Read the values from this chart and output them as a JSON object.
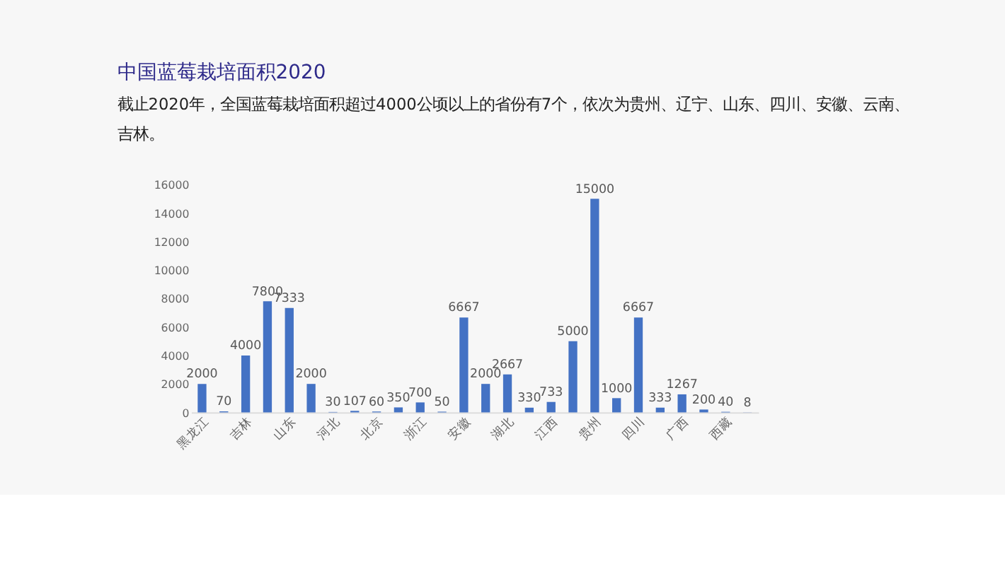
{
  "chart_data": {
    "type": "bar",
    "title": "中国蓝莓栽培面积2020",
    "subtitle": "截止2020年，全国蓝莓栽培面积超过4000公顷以上的省份有7个，依次为贵州、辽宁、山东、四川、安徽、云南、吉林。",
    "categories": [
      "黑龙江",
      null,
      "吉林",
      null,
      "山东",
      null,
      "河北",
      null,
      "北京",
      null,
      "浙江",
      null,
      "安徽",
      null,
      "湖北",
      null,
      "江西",
      null,
      "贵州",
      null,
      "四川",
      null,
      "广西",
      null,
      "西藏",
      null
    ],
    "values": [
      2000,
      70,
      4000,
      7800,
      7333,
      2000,
      30,
      107,
      60,
      350,
      700,
      50,
      6667,
      2000,
      2667,
      330,
      733,
      5000,
      15000,
      1000,
      6667,
      333,
      1267,
      200,
      40,
      8
    ],
    "color": "#4472c4",
    "ylim": [
      0,
      16000
    ],
    "yticks": [
      0,
      2000,
      4000,
      6000,
      8000,
      10000,
      12000,
      14000,
      16000
    ],
    "grid": false,
    "data_labels": true
  }
}
